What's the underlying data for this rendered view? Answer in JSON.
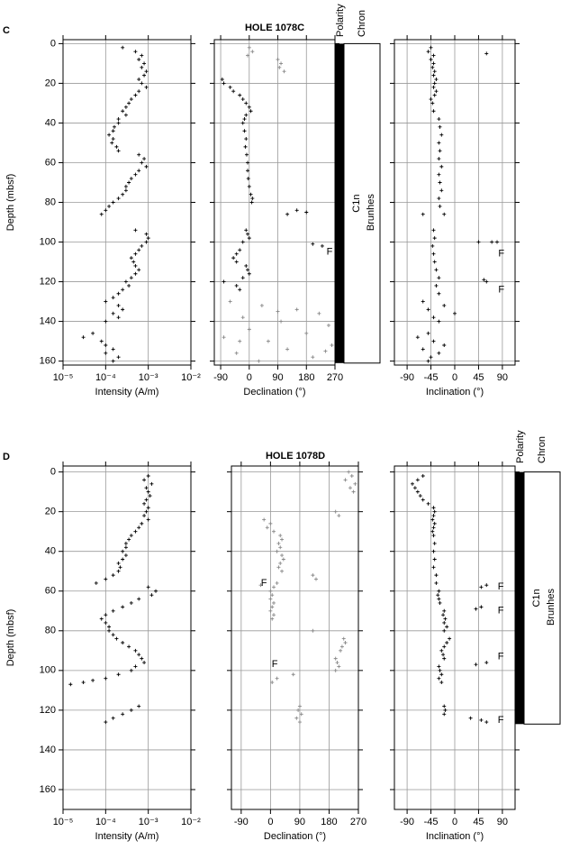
{
  "panels": [
    {
      "label": "C",
      "title": "HOLE 1078C",
      "polarity_header": "Polarity",
      "chron_header": "Chron",
      "polarity_label": "C1n",
      "chron_label": "Brunhes",
      "polarity_depth": [
        0,
        161
      ]
    },
    {
      "label": "D",
      "title": "HOLE 1078D",
      "polarity_header": "Polarity",
      "chron_header": "Chron",
      "polarity_label": "C1n",
      "chron_label": "Brunhes",
      "polarity_depth": [
        0,
        127
      ]
    }
  ],
  "chart_data": [
    {
      "type": "scatter",
      "x_label": "Intensity (A/m)",
      "y_label": "Depth (mbsf)",
      "log_x": true,
      "xlim": [
        1e-05,
        0.01
      ],
      "xticks": [
        {
          "value": 1e-05,
          "label": "10⁻⁵"
        },
        {
          "value": 0.0001,
          "label": "10⁻⁴"
        },
        {
          "value": 0.001,
          "label": "10⁻³"
        },
        {
          "value": 0.01,
          "label": "10⁻²"
        }
      ],
      "ylim": [
        -2,
        162
      ],
      "yticks": [
        0,
        20,
        40,
        60,
        80,
        100,
        120,
        140,
        160
      ],
      "grid": true,
      "series": [
        {
          "color": "#000000",
          "x": [
            0.00025,
            0.0005,
            0.0007,
            0.0006,
            0.0008,
            0.0007,
            0.0009,
            0.0008,
            0.0006,
            0.0007,
            0.0009,
            0.0006,
            0.0005,
            0.0004,
            0.00035,
            0.0003,
            0.00025,
            0.0003,
            0.0002,
            0.0002,
            0.00016,
            0.00015,
            0.00012,
            0.00015,
            0.00014,
            0.00018,
            0.0002,
            0.0006,
            0.0008,
            0.0007,
            0.0009,
            0.0006,
            0.0005,
            0.0004,
            0.00035,
            0.0003,
            0.0003,
            0.00025,
            0.0002,
            0.00015,
            0.00012,
            0.0001,
            8e-05,
            0.0005,
            0.0009,
            0.001,
            0.0009,
            0.0007,
            0.0006,
            0.0005,
            0.0004,
            0.00045,
            0.0005,
            0.0006,
            0.0005,
            0.0004,
            0.0003,
            0.00035,
            0.00025,
            0.0002,
            0.00015,
            0.0001,
            0.0002,
            0.00025,
            0.00015,
            0.0002,
            0.0001,
            5e-05,
            3e-05,
            8e-05,
            0.0001,
            0.00015,
            0.0001,
            0.0002,
            0.00015
          ],
          "y": [
            2,
            4,
            6,
            8,
            10,
            12,
            14,
            16,
            18,
            20,
            22,
            24,
            26,
            28,
            30,
            32,
            34,
            36,
            38,
            40,
            42,
            44,
            46,
            48,
            50,
            52,
            54,
            56,
            58,
            60,
            62,
            64,
            66,
            68,
            70,
            72,
            74,
            76,
            78,
            80,
            82,
            84,
            86,
            94,
            96,
            98,
            100,
            102,
            104,
            106,
            108,
            110,
            112,
            114,
            116,
            118,
            120,
            122,
            124,
            126,
            128,
            130,
            132,
            134,
            136,
            138,
            140,
            146,
            148,
            150,
            152,
            154,
            156,
            158,
            160
          ]
        }
      ],
      "annotations": []
    },
    {
      "type": "scatter",
      "x_label": "Declination (°)",
      "xlim": [
        -110,
        270
      ],
      "xticks": [
        -90,
        0,
        90,
        180,
        270
      ],
      "ylim": [
        -2,
        162
      ],
      "yticks": [
        0,
        20,
        40,
        60,
        80,
        100,
        120,
        140,
        160
      ],
      "grid": true,
      "series": [
        {
          "color": "#000000",
          "x": [
            -85,
            -80,
            -60,
            -50,
            -30,
            -20,
            -10,
            0,
            5,
            -10,
            -15,
            -20,
            -15,
            -10,
            -12,
            -8,
            -5,
            -5,
            -3,
            0,
            5,
            10,
            8,
            150,
            180,
            120,
            -10,
            -5,
            0,
            -20,
            200,
            230,
            -30,
            -40,
            -50,
            -40,
            -10,
            -5,
            0,
            -20,
            -80,
            -40,
            -30
          ],
          "y": [
            18,
            20,
            22,
            24,
            26,
            28,
            30,
            32,
            34,
            36,
            38,
            40,
            44,
            48,
            52,
            56,
            60,
            64,
            68,
            72,
            76,
            78,
            80,
            84,
            85,
            86,
            94,
            96,
            98,
            100,
            101,
            102,
            104,
            106,
            108,
            110,
            112,
            114,
            116,
            118,
            120,
            122,
            124
          ]
        },
        {
          "color": "#888888",
          "x": [
            0,
            10,
            -5,
            90,
            100,
            95,
            110,
            -60,
            40,
            150,
            90,
            220,
            -20,
            100,
            250,
            0,
            180,
            -80,
            60,
            -30,
            260,
            120,
            240,
            -40,
            200,
            30
          ],
          "y": [
            2,
            4,
            6,
            8,
            10,
            12,
            14,
            130,
            132,
            134,
            135,
            136,
            138,
            140,
            142,
            144,
            146,
            148,
            150,
            150,
            152,
            154,
            155,
            156,
            158,
            160
          ]
        }
      ],
      "annotations": [
        {
          "text": "F",
          "x": 253,
          "y": 105
        }
      ]
    },
    {
      "type": "scatter",
      "x_label": "Inclination (°)",
      "xlim": [
        -114,
        114
      ],
      "xticks": [
        -90,
        -45,
        0,
        45,
        90
      ],
      "ylim": [
        -2,
        162
      ],
      "yticks": [
        0,
        20,
        40,
        60,
        80,
        100,
        120,
        140,
        160
      ],
      "grid": true,
      "series": [
        {
          "color": "#000000",
          "x": [
            -45,
            -50,
            60,
            -40,
            -45,
            -40,
            -42,
            -38,
            -40,
            -35,
            -38,
            -40,
            -35,
            -38,
            -45,
            -42,
            -40,
            -30,
            -28,
            -25,
            -30,
            -28,
            -30,
            -25,
            -30,
            -28,
            -25,
            -30,
            -28,
            -60,
            -20,
            -40,
            -38,
            70,
            80,
            45,
            -42,
            -40,
            -38,
            -35,
            -30,
            55,
            60,
            -35,
            -30,
            -60,
            -20,
            -50,
            0,
            -40,
            -30,
            -50,
            -70,
            -40,
            -20,
            -60,
            -30,
            -45,
            -50
          ],
          "y": [
            2,
            4,
            5,
            6,
            8,
            10,
            12,
            14,
            16,
            18,
            20,
            22,
            24,
            26,
            28,
            30,
            34,
            38,
            42,
            46,
            50,
            54,
            58,
            62,
            66,
            70,
            74,
            78,
            82,
            86,
            86,
            94,
            98,
            100,
            100,
            100,
            102,
            106,
            110,
            114,
            118,
            119,
            120,
            122,
            126,
            130,
            132,
            134,
            136,
            138,
            140,
            146,
            148,
            150,
            152,
            154,
            156,
            158,
            160
          ]
        }
      ],
      "annotations": [
        {
          "text": "F",
          "x": 88,
          "y": 106
        },
        {
          "text": "F",
          "x": 88,
          "y": 124
        }
      ]
    },
    {
      "type": "scatter",
      "x_label": "Intensity (A/m)",
      "y_label": "Depth (mbsf)",
      "log_x": true,
      "xlim": [
        1e-05,
        0.01
      ],
      "xticks": [
        {
          "value": 1e-05,
          "label": "10⁻⁵"
        },
        {
          "value": 0.0001,
          "label": "10⁻⁴"
        },
        {
          "value": 0.001,
          "label": "10⁻³"
        },
        {
          "value": 0.01,
          "label": "10⁻²"
        }
      ],
      "ylim": [
        -3,
        170
      ],
      "yticks": [
        0,
        20,
        40,
        60,
        80,
        100,
        120,
        140,
        160
      ],
      "grid": true,
      "series": [
        {
          "color": "#000000",
          "x": [
            0.001,
            0.0008,
            0.0012,
            0.0009,
            0.001,
            0.0011,
            0.0009,
            0.0008,
            0.001,
            0.0009,
            0.0008,
            0.001,
            0.0007,
            0.0006,
            0.0005,
            0.0004,
            0.00035,
            0.0003,
            0.0003,
            0.00025,
            0.0003,
            0.00025,
            0.0002,
            0.00022,
            0.0002,
            0.00015,
            0.0001,
            6e-05,
            0.001,
            0.0015,
            0.0012,
            0.0006,
            0.0004,
            0.00025,
            0.00015,
            0.0001,
            8e-05,
            0.0001,
            0.00012,
            0.00012,
            0.00015,
            0.00018,
            0.00025,
            0.00035,
            0.0005,
            0.0006,
            0.0007,
            0.0008,
            0.0005,
            0.0004,
            0.0002,
            0.0001,
            5e-05,
            3e-05,
            1.5e-05,
            0.0006,
            0.0004,
            0.00025,
            0.00015,
            0.0001
          ],
          "y": [
            2,
            4,
            6,
            8,
            10,
            12,
            14,
            16,
            18,
            20,
            22,
            24,
            26,
            28,
            30,
            32,
            34,
            36,
            38,
            40,
            42,
            44,
            46,
            48,
            50,
            52,
            54,
            56,
            58,
            60,
            62,
            64,
            66,
            68,
            70,
            72,
            74,
            76,
            78,
            80,
            82,
            84,
            86,
            88,
            90,
            92,
            94,
            96,
            98,
            100,
            102,
            104,
            105,
            106,
            107,
            118,
            120,
            122,
            124,
            126
          ]
        }
      ],
      "annotations": []
    },
    {
      "type": "scatter",
      "x_label": "Declination (°)",
      "xlim": [
        -120,
        270
      ],
      "xticks": [
        -90,
        0,
        90,
        180,
        270
      ],
      "ylim": [
        -3,
        170
      ],
      "yticks": [
        0,
        20,
        40,
        60,
        80,
        100,
        120,
        140,
        160
      ],
      "grid": true,
      "series": [
        {
          "color": "#888888",
          "x": [
            240,
            250,
            230,
            260,
            245,
            255,
            200,
            210,
            -20,
            0,
            -10,
            10,
            30,
            35,
            25,
            30,
            20,
            35,
            40,
            30,
            25,
            35,
            130,
            140,
            20,
            -30,
            10,
            0,
            5,
            0,
            10,
            5,
            0,
            10,
            5,
            130,
            225,
            230,
            220,
            215,
            200,
            205,
            210,
            200,
            70,
            20,
            5,
            90,
            85,
            95,
            80,
            90
          ],
          "y": [
            0,
            2,
            4,
            6,
            8,
            10,
            20,
            22,
            24,
            26,
            28,
            30,
            32,
            34,
            36,
            38,
            40,
            42,
            44,
            46,
            48,
            50,
            52,
            54,
            56,
            57,
            58,
            60,
            62,
            64,
            66,
            68,
            70,
            72,
            74,
            80,
            84,
            86,
            88,
            90,
            94,
            96,
            98,
            100,
            102,
            104,
            106,
            118,
            120,
            122,
            124,
            126
          ]
        }
      ],
      "annotations": [
        {
          "text": "F",
          "x": -20,
          "y": 56
        },
        {
          "text": "F",
          "x": 13,
          "y": 97
        }
      ]
    },
    {
      "type": "scatter",
      "x_label": "Inclination (°)",
      "xlim": [
        -114,
        114
      ],
      "xticks": [
        -90,
        -45,
        0,
        45,
        90
      ],
      "ylim": [
        -3,
        170
      ],
      "yticks": [
        0,
        20,
        40,
        60,
        80,
        100,
        120,
        140,
        160
      ],
      "grid": true,
      "series": [
        {
          "color": "#000000",
          "x": [
            -60,
            -70,
            -80,
            -75,
            -70,
            -65,
            -60,
            -50,
            -40,
            -38,
            -40,
            -42,
            -38,
            -40,
            -42,
            -40,
            -38,
            -40,
            -38,
            -40,
            -35,
            -35,
            60,
            50,
            -30,
            -32,
            -30,
            -28,
            50,
            40,
            -20,
            -22,
            -18,
            -20,
            -15,
            -20,
            -10,
            -15,
            -20,
            -25,
            -22,
            -20,
            60,
            40,
            -30,
            -28,
            -25,
            -30,
            -25,
            -20,
            -18,
            -20,
            30,
            50,
            60
          ],
          "y": [
            2,
            4,
            6,
            8,
            10,
            12,
            14,
            16,
            18,
            20,
            22,
            24,
            26,
            28,
            30,
            32,
            36,
            40,
            44,
            48,
            52,
            56,
            57,
            58,
            60,
            62,
            64,
            66,
            68,
            69,
            70,
            72,
            74,
            76,
            78,
            80,
            84,
            86,
            88,
            90,
            92,
            94,
            96,
            97,
            98,
            100,
            102,
            104,
            106,
            118,
            120,
            122,
            124,
            125,
            126
          ]
        }
      ],
      "annotations": [
        {
          "text": "F",
          "x": 87,
          "y": 58
        },
        {
          "text": "F",
          "x": 87,
          "y": 70
        },
        {
          "text": "F",
          "x": 87,
          "y": 93
        },
        {
          "text": "F",
          "x": 87,
          "y": 125
        }
      ]
    }
  ]
}
